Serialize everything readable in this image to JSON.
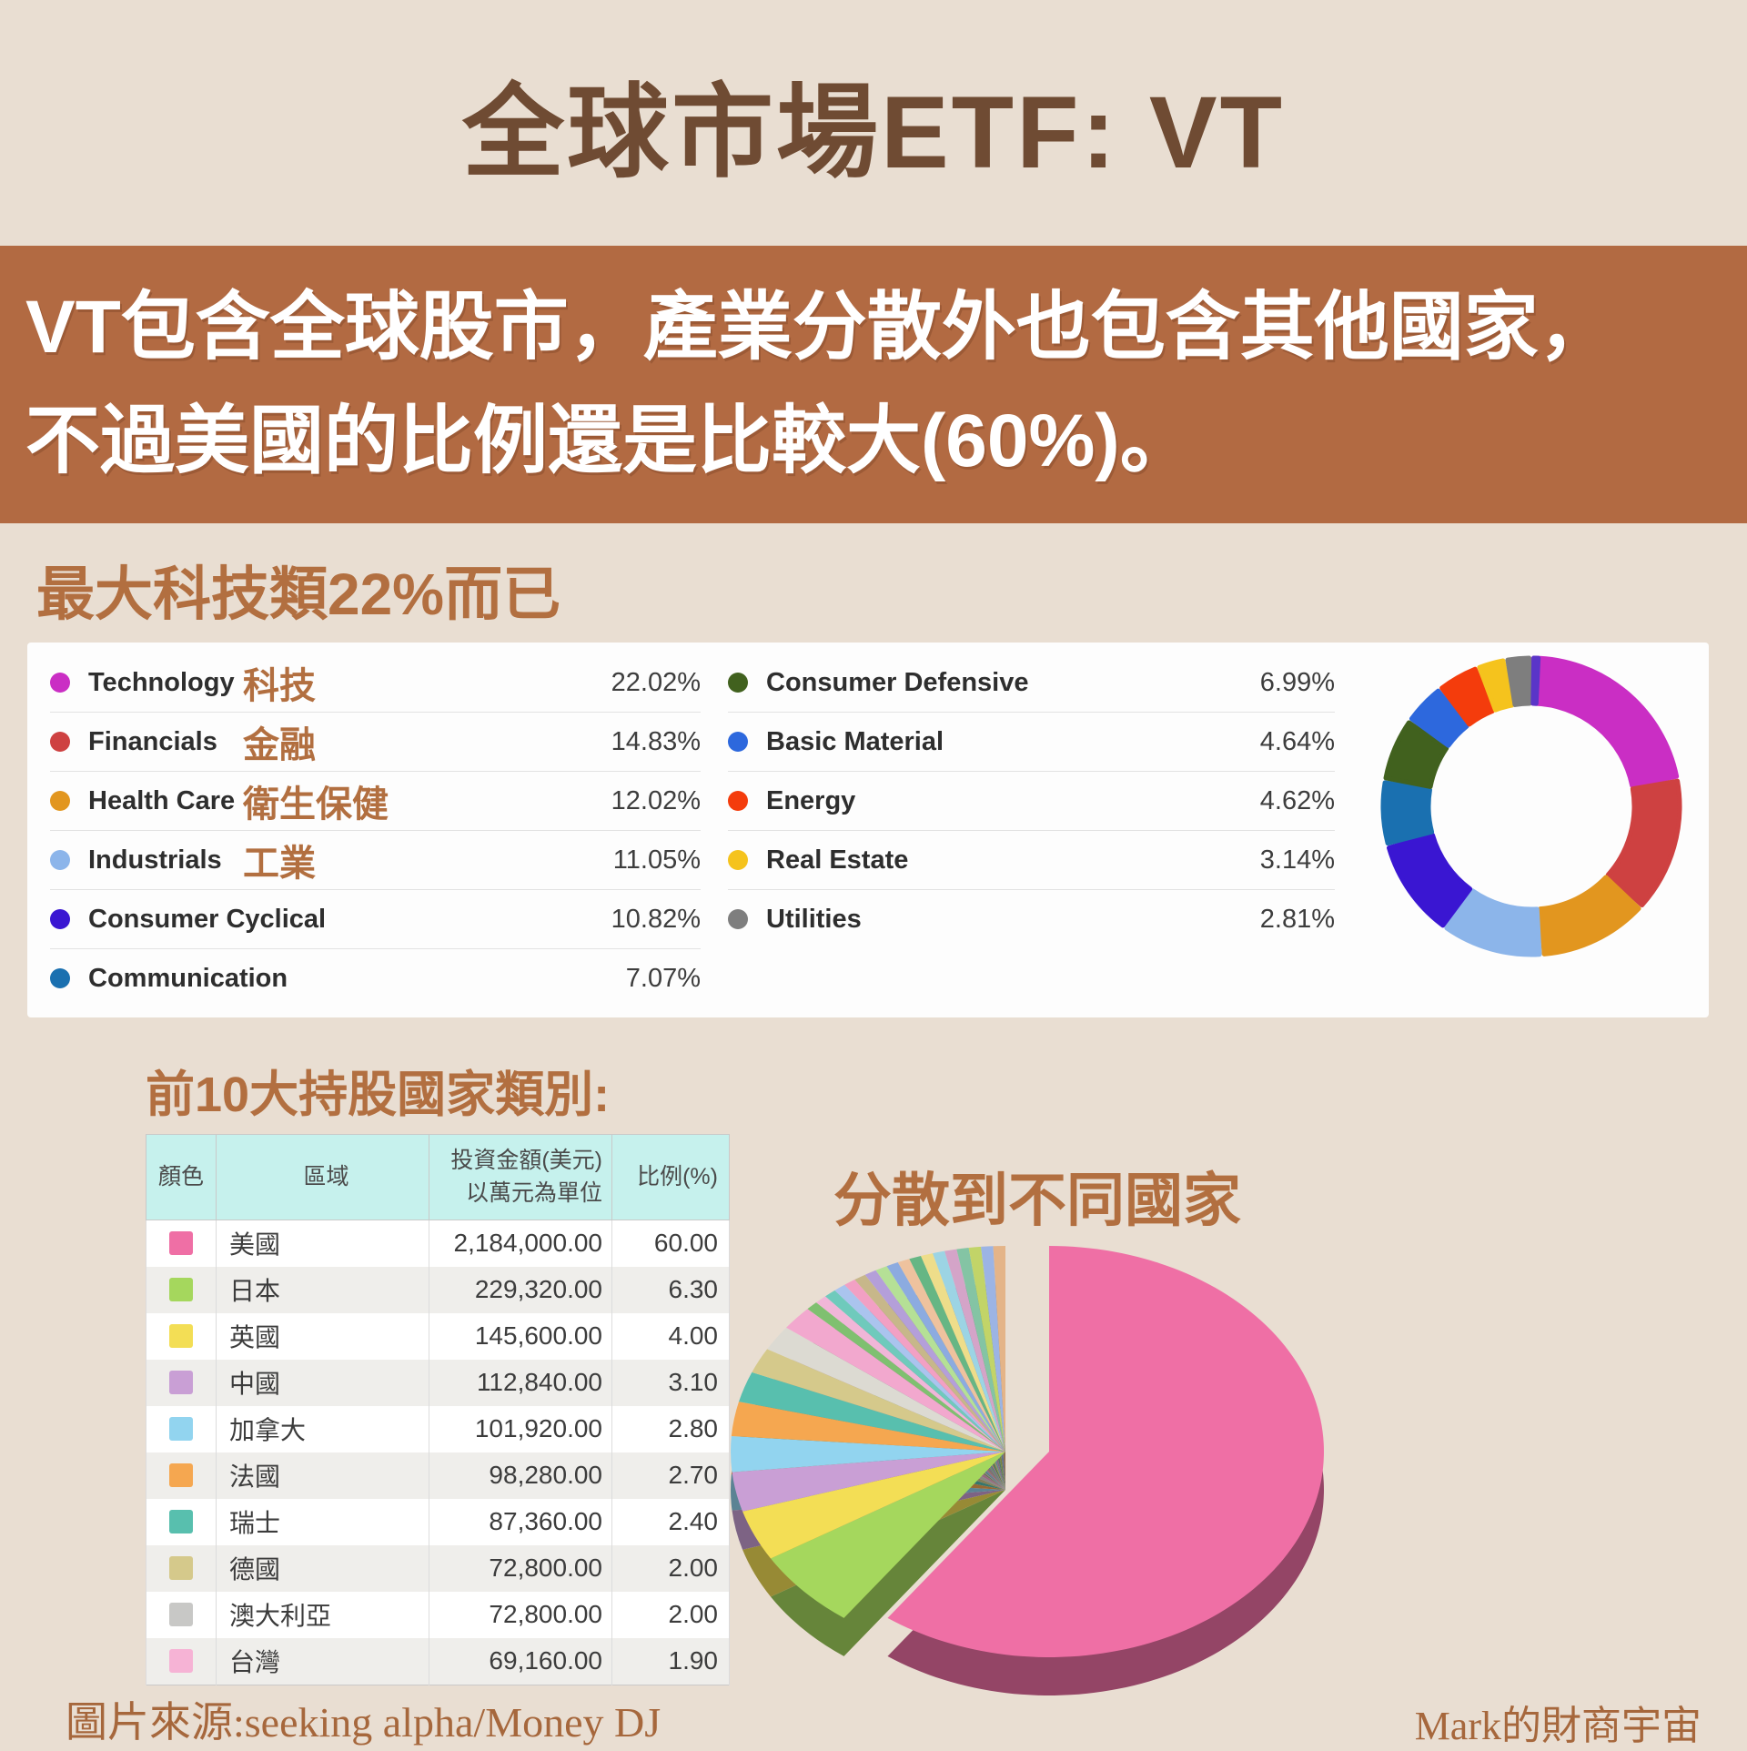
{
  "page": {
    "title": "全球市場ETF: VT",
    "banner_line1": "VT包含全球股市，產業分散外也包含其他國家，",
    "banner_line2": "不過美國的比例還是比較大(60%)。",
    "sector_heading": "最大科技類22%而已",
    "country_heading": "前10大持股國家類別:",
    "pie_heading": "分散到不同國家",
    "source_note": "圖片來源:seeking alpha/Money DJ",
    "credit": "Mark的財商宇宙"
  },
  "chart_data": [
    {
      "type": "pie",
      "variant": "donut",
      "title": "VT sector weights",
      "legend_position": "left",
      "series": [
        {
          "name": "Technology",
          "zh": "科技",
          "value": 22.02,
          "color": "#ca2ec4"
        },
        {
          "name": "Financials",
          "zh": "金融",
          "value": 14.83,
          "color": "#ce4141"
        },
        {
          "name": "Health Care",
          "zh": "衛生保健",
          "value": 12.02,
          "color": "#e2961f"
        },
        {
          "name": "Industrials",
          "zh": "工業",
          "value": 11.05,
          "color": "#8cb5ea"
        },
        {
          "name": "Consumer Cyclical",
          "zh": "",
          "value": 10.82,
          "color": "#3a16d2"
        },
        {
          "name": "Communication",
          "zh": "",
          "value": 7.07,
          "color": "#1a70b0"
        },
        {
          "name": "Consumer Defensive",
          "zh": "",
          "value": 6.99,
          "color": "#41611e"
        },
        {
          "name": "Basic Material",
          "zh": "",
          "value": 4.64,
          "color": "#2d68dd"
        },
        {
          "name": "Energy",
          "zh": "",
          "value": 4.62,
          "color": "#f43c0c"
        },
        {
          "name": "Real Estate",
          "zh": "",
          "value": 3.14,
          "color": "#f5c31d"
        },
        {
          "name": "Utilities",
          "zh": "",
          "value": 2.81,
          "color": "#7e7e7e"
        }
      ],
      "remainder": {
        "name": "Other",
        "value": 0.99,
        "color": "#5a35c8"
      }
    },
    {
      "type": "pie",
      "variant": "3d-exploded",
      "title": "分散到不同國家",
      "series": [
        {
          "name": "美國",
          "value": 60.0,
          "color": "#ef6fa5",
          "exploded": true
        },
        {
          "name": "日本",
          "value": 6.3,
          "color": "#a5d75d",
          "exploded": false
        },
        {
          "name": "英國",
          "value": 4.0,
          "color": "#f3de55",
          "exploded": false
        },
        {
          "name": "中國",
          "value": 3.1,
          "color": "#c99fd5",
          "exploded": false
        },
        {
          "name": "加拿大",
          "value": 2.8,
          "color": "#92d4ef",
          "exploded": false
        },
        {
          "name": "法國",
          "value": 2.7,
          "color": "#f5a750",
          "exploded": false
        },
        {
          "name": "瑞士",
          "value": 2.4,
          "color": "#58bfae",
          "exploded": false
        },
        {
          "name": "德國",
          "value": 2.0,
          "color": "#d5c98b",
          "exploded": false
        },
        {
          "name": "澳大利亞",
          "value": 2.0,
          "color": "#dcdad2",
          "exploded": false
        },
        {
          "name": "台灣",
          "value": 1.9,
          "color": "#f2a8ce",
          "exploded": false
        }
      ],
      "others": {
        "value": 12.8,
        "colors": [
          "#7fc070",
          "#f0b6d8",
          "#6fcabc",
          "#aac4ee",
          "#f2a0c4",
          "#c7b78a",
          "#b49fd9",
          "#b5e096",
          "#8cabe0",
          "#eec29e",
          "#66b684",
          "#eedd8a",
          "#9cd4e4",
          "#d4a4c8",
          "#84c4a4",
          "#c2d468",
          "#9cb4e4",
          "#e4b488"
        ]
      }
    }
  ],
  "country_table": {
    "headers": [
      "顏色",
      "區域",
      "投資金額(美元)\n以萬元為單位",
      "比例(%)"
    ],
    "rows": [
      {
        "color": "#ef6fa5",
        "region": "美國",
        "amount": "2,184,000.00",
        "pct": "60.00"
      },
      {
        "color": "#a5d75d",
        "region": "日本",
        "amount": "229,320.00",
        "pct": "6.30"
      },
      {
        "color": "#f3de55",
        "region": "英國",
        "amount": "145,600.00",
        "pct": "4.00"
      },
      {
        "color": "#c99fd5",
        "region": "中國",
        "amount": "112,840.00",
        "pct": "3.10"
      },
      {
        "color": "#92d4ef",
        "region": "加拿大",
        "amount": "101,920.00",
        "pct": "2.80"
      },
      {
        "color": "#f5a750",
        "region": "法國",
        "amount": "98,280.00",
        "pct": "2.70"
      },
      {
        "color": "#58bfae",
        "region": "瑞士",
        "amount": "87,360.00",
        "pct": "2.40"
      },
      {
        "color": "#d5c98b",
        "region": "德國",
        "amount": "72,800.00",
        "pct": "2.00"
      },
      {
        "color": "#c8c8c6",
        "region": "澳大利亞",
        "amount": "72,800.00",
        "pct": "2.00"
      },
      {
        "color": "#f6b3d5",
        "region": "台灣",
        "amount": "69,160.00",
        "pct": "1.90"
      }
    ]
  }
}
